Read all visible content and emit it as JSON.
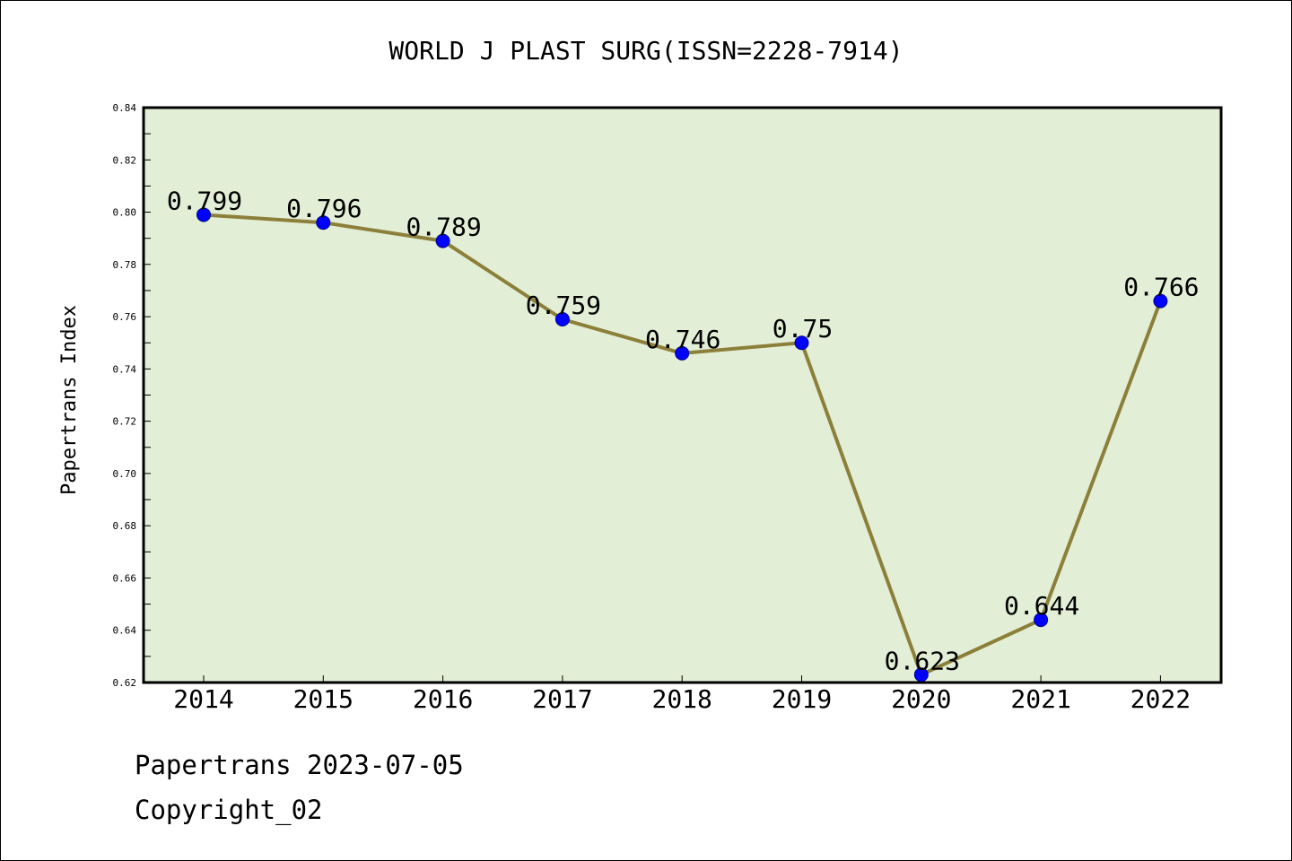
{
  "chart_data": {
    "type": "line",
    "title": "WORLD J PLAST SURG(ISSN=2228-7914)",
    "ylabel": "Papertrans Index",
    "xlabel": "",
    "categories": [
      "2014",
      "2015",
      "2016",
      "2017",
      "2018",
      "2019",
      "2020",
      "2021",
      "2022"
    ],
    "series": [
      {
        "values": [
          0.799,
          0.796,
          0.789,
          0.759,
          0.746,
          0.75,
          0.623,
          0.644,
          0.766
        ]
      }
    ],
    "data_labels": [
      "0.799",
      "0.796",
      "0.789",
      "0.759",
      "0.746",
      "0.75",
      "0.623",
      "0.644",
      "0.766"
    ],
    "ylim": [
      0.62,
      0.84
    ],
    "yticks": [
      "0.62",
      "0.64",
      "0.66",
      "0.68",
      "0.70",
      "0.72",
      "0.74",
      "0.76",
      "0.78",
      "0.80",
      "0.82",
      "0.84"
    ],
    "colors": {
      "plot_background": "#e2efd6",
      "line": "#8c7f3a",
      "marker": "#0000ff"
    },
    "grid": false,
    "legend": "none"
  },
  "footer": {
    "date_text": "Papertrans 2023-07-05",
    "copyright": "Copyright_02"
  }
}
